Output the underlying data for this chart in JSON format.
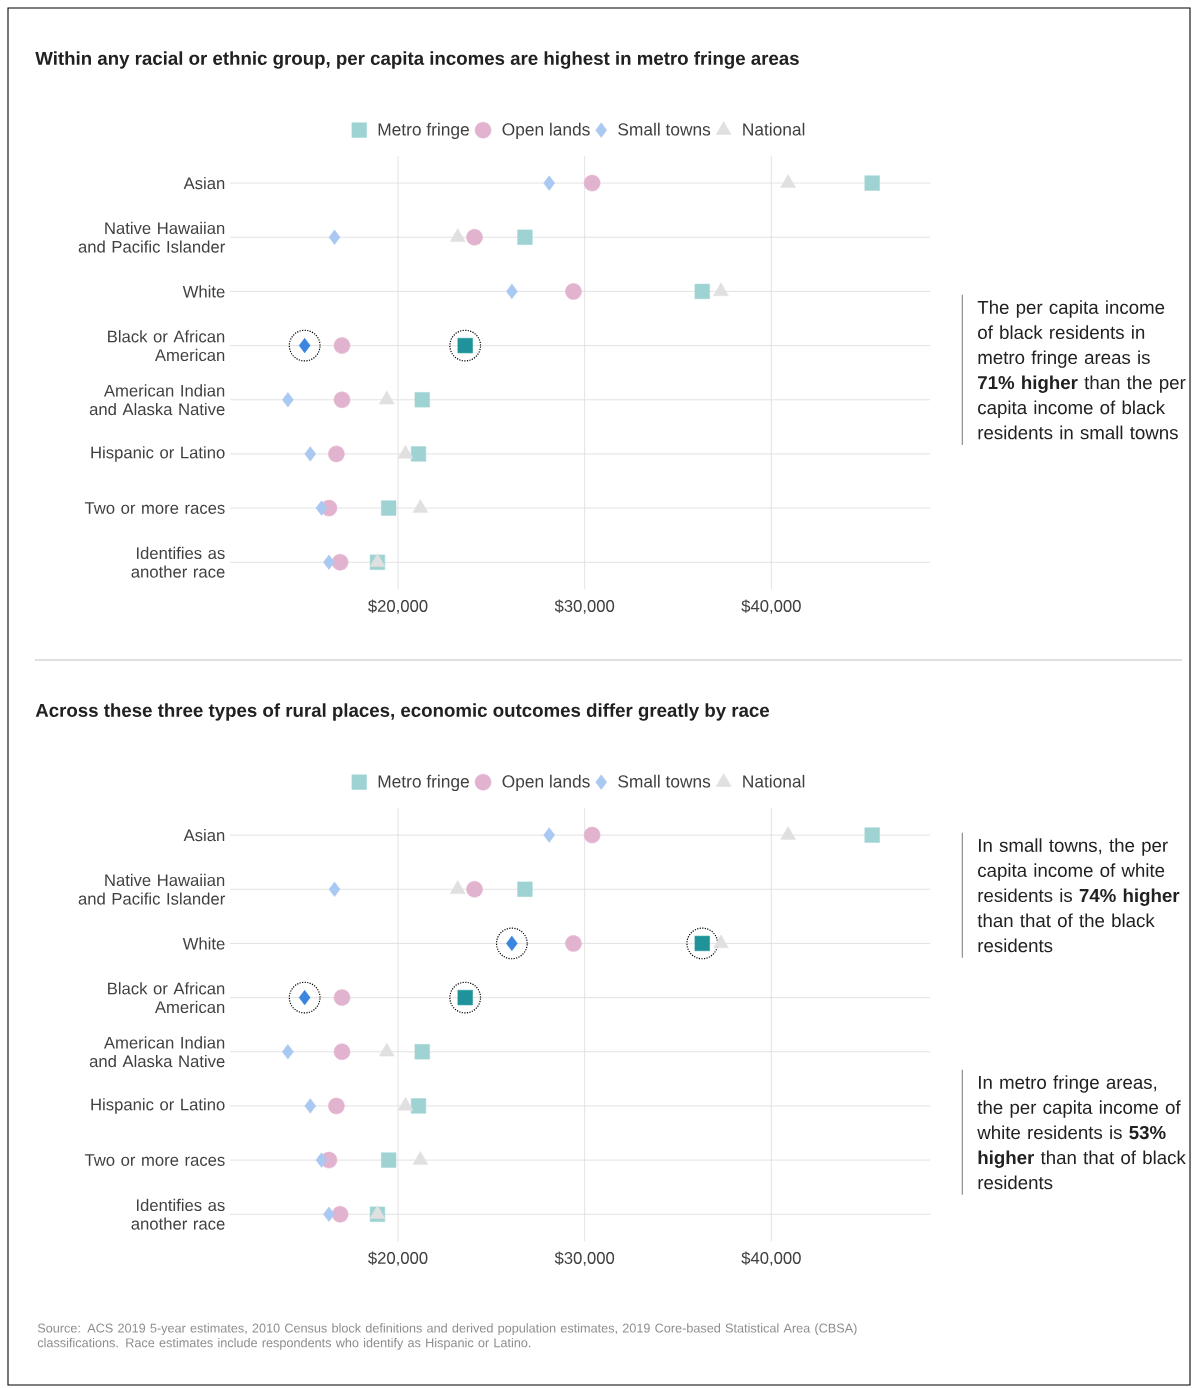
{
  "chart_data": [
    {
      "type": "scatter",
      "orientation": "horizontal",
      "title": "Within any racial or ethnic group, per capita incomes are highest in metro fringe areas",
      "categories": [
        "Asian",
        "Native Hawaiian and Pacific Islander",
        "White",
        "Black or African American",
        "American Indian and Alaska Native",
        "Hispanic or Latino",
        "Two or more races",
        "Identifies as another race"
      ],
      "series": [
        {
          "name": "Metro fringe",
          "color": "#9fd3d3",
          "marker": "square",
          "colors": [
            "#9fd3d3",
            "#9fd3d3",
            "#9fd3d3",
            "#1f9399",
            "#9fd3d3",
            "#9fd3d3",
            "#9fd3d3",
            "#9fd3d3"
          ],
          "values": [
            45400,
            26800,
            36300,
            23600,
            21300,
            21100,
            19500,
            18900
          ]
        },
        {
          "name": "Open lands",
          "color": "#e2b3cf",
          "marker": "circle",
          "values": [
            30400,
            24100,
            29400,
            17000,
            17000,
            16700,
            16300,
            16900
          ]
        },
        {
          "name": "Small towns",
          "color": "#a9c8f2",
          "marker": "diamond",
          "colors": [
            "#a9c8f2",
            "#a9c8f2",
            "#a9c8f2",
            "#3a85e0",
            "#a9c8f2",
            "#a9c8f2",
            "#a9c8f2",
            "#a9c8f2"
          ],
          "values": [
            28100,
            16600,
            26100,
            15000,
            14100,
            15300,
            15900,
            16300
          ]
        },
        {
          "name": "National",
          "color": "#e0e0e0",
          "marker": "triangle",
          "values": [
            40900,
            23200,
            37300,
            null,
            19400,
            20400,
            21200,
            18900
          ]
        }
      ],
      "xlim": [
        11000,
        48500
      ],
      "xticks": [
        {
          "value": 20000,
          "label": "$20,000"
        },
        {
          "value": 30000,
          "label": "$30,000"
        },
        {
          "value": 40000,
          "label": "$40,000"
        }
      ],
      "grid": true,
      "legend": "top",
      "annotations": [
        "The per capita income of black residents in metro fringe areas is **71% higher** than the per capita income of black residents in small towns"
      ]
    },
    {
      "type": "scatter",
      "orientation": "horizontal",
      "title": "Across these three types of rural places, economic outcomes differ greatly by race",
      "categories": [
        "Asian",
        "Native Hawaiian and Pacific Islander",
        "White",
        "Black or African American",
        "American Indian and Alaska Native",
        "Hispanic or Latino",
        "Two or more races",
        "Identifies as another race"
      ],
      "series": [
        {
          "name": "Metro fringe",
          "color": "#9fd3d3",
          "marker": "square",
          "colors": [
            "#9fd3d3",
            "#9fd3d3",
            "#1f9399",
            "#1f9399",
            "#9fd3d3",
            "#9fd3d3",
            "#9fd3d3",
            "#9fd3d3"
          ],
          "values": [
            45400,
            26800,
            36300,
            23600,
            21300,
            21100,
            19500,
            18900
          ]
        },
        {
          "name": "Open lands",
          "color": "#e2b3cf",
          "marker": "circle",
          "values": [
            30400,
            24100,
            29400,
            17000,
            17000,
            16700,
            16300,
            16900
          ]
        },
        {
          "name": "Small towns",
          "color": "#a9c8f2",
          "marker": "diamond",
          "colors": [
            "#a9c8f2",
            "#a9c8f2",
            "#3a85e0",
            "#3a85e0",
            "#a9c8f2",
            "#a9c8f2",
            "#a9c8f2",
            "#a9c8f2"
          ],
          "values": [
            28100,
            16600,
            26100,
            15000,
            14100,
            15300,
            15900,
            16300
          ]
        },
        {
          "name": "National",
          "color": "#e0e0e0",
          "marker": "triangle",
          "values": [
            40900,
            23200,
            37300,
            null,
            19400,
            20400,
            21200,
            18900
          ]
        }
      ],
      "xlim": [
        11000,
        48500
      ],
      "xticks": [
        {
          "value": 20000,
          "label": "$20,000"
        },
        {
          "value": 30000,
          "label": "$30,000"
        },
        {
          "value": 40000,
          "label": "$40,000"
        }
      ],
      "grid": true,
      "legend": "top",
      "annotations": [
        "In small towns, the per capita income of white residents is **74% higher** than that of the black residents",
        "In metro fringe areas, the per capita income of white residents is **53% higher** than that of black residents",
        "Source: ACS 2019 5-year estimates, 2010 Census block definitions and derived population estimates, 2019 Core-based Statistical Area (CBSA) classifications. Race estimates include respondents who identify as Hispanic or Latino."
      ]
    }
  ]
}
